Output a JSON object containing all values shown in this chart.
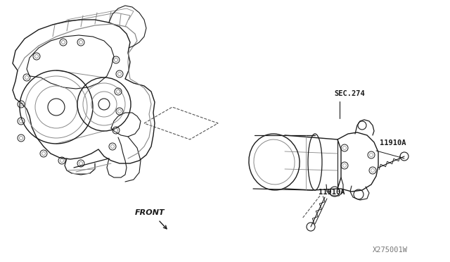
{
  "background_color": "#ffffff",
  "line_color": "#1a1a1a",
  "gray_color": "#888888",
  "dash_color": "#555555",
  "labels": {
    "sec274": "SEC.274",
    "11910A_1": "11910A",
    "11910A_2": "11910A",
    "watermark": "X275001W",
    "front": "FRONT"
  },
  "figsize": [
    6.4,
    3.72
  ],
  "dpi": 100
}
